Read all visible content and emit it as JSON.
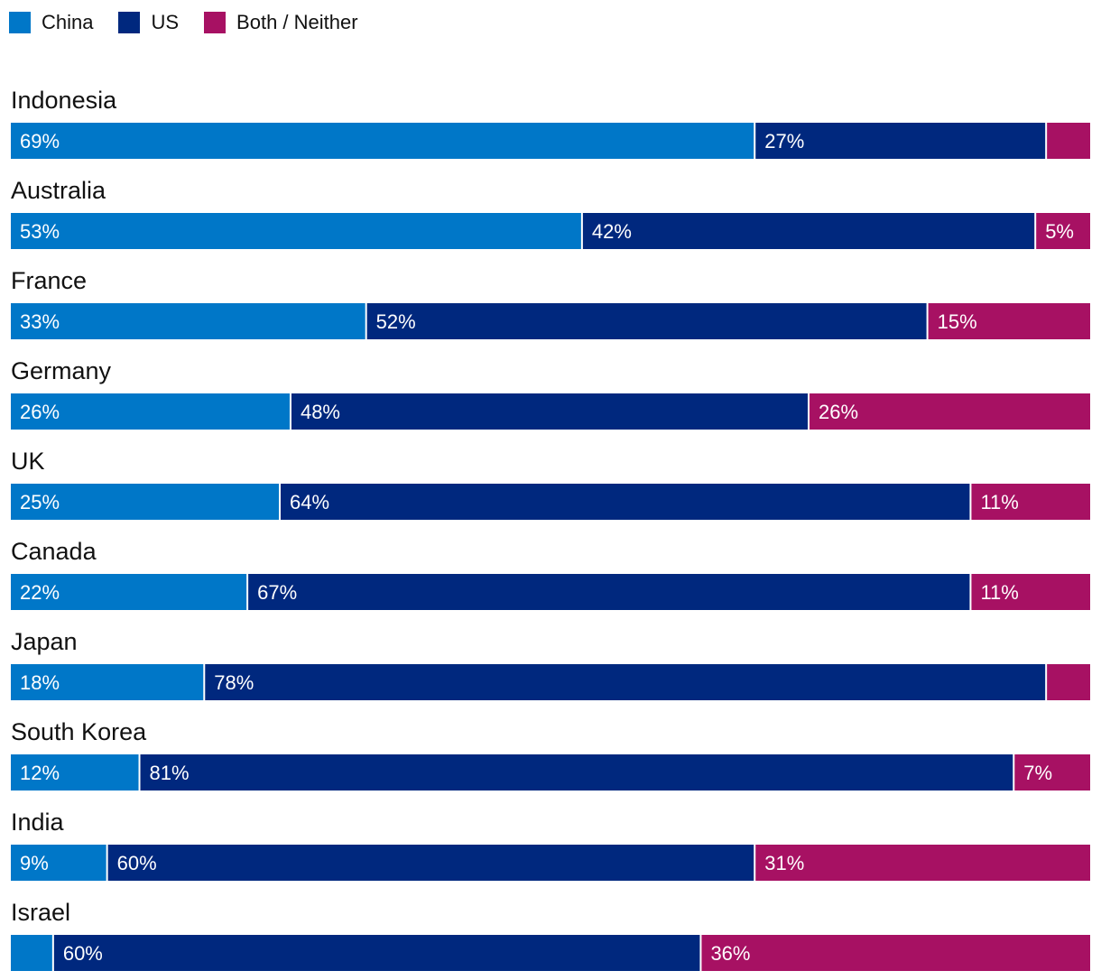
{
  "chart_data": {
    "type": "bar",
    "orientation": "horizontal",
    "stacked": true,
    "series": [
      {
        "key": "china",
        "name": "China",
        "color": "#0077C8"
      },
      {
        "key": "us",
        "name": "US",
        "color": "#00287E"
      },
      {
        "key": "both",
        "name": "Both / Neither",
        "color": "#A71163"
      }
    ],
    "rows": [
      {
        "country": "Indonesia",
        "china": 69,
        "us": 27,
        "both": 4,
        "labels": [
          "69%",
          "27%",
          ""
        ]
      },
      {
        "country": "Australia",
        "china": 53,
        "us": 42,
        "both": 5,
        "labels": [
          "53%",
          "42%",
          "5%"
        ]
      },
      {
        "country": "France",
        "china": 33,
        "us": 52,
        "both": 15,
        "labels": [
          "33%",
          "52%",
          "15%"
        ]
      },
      {
        "country": "Germany",
        "china": 26,
        "us": 48,
        "both": 26,
        "labels": [
          "26%",
          "48%",
          "26%"
        ]
      },
      {
        "country": "UK",
        "china": 25,
        "us": 64,
        "both": 11,
        "labels": [
          "25%",
          "64%",
          "11%"
        ]
      },
      {
        "country": "Canada",
        "china": 22,
        "us": 67,
        "both": 11,
        "labels": [
          "22%",
          "67%",
          "11%"
        ]
      },
      {
        "country": "Japan",
        "china": 18,
        "us": 78,
        "both": 4,
        "labels": [
          "18%",
          "78%",
          ""
        ]
      },
      {
        "country": "South Korea",
        "china": 12,
        "us": 81,
        "both": 7,
        "labels": [
          "12%",
          "81%",
          "7%"
        ]
      },
      {
        "country": "India",
        "china": 9,
        "us": 60,
        "both": 31,
        "labels": [
          "9%",
          "60%",
          "31%"
        ]
      },
      {
        "country": "Israel",
        "china": 4,
        "us": 60,
        "both": 36,
        "labels": [
          "",
          "60%",
          "36%"
        ]
      }
    ],
    "xlim": [
      0,
      100
    ]
  }
}
